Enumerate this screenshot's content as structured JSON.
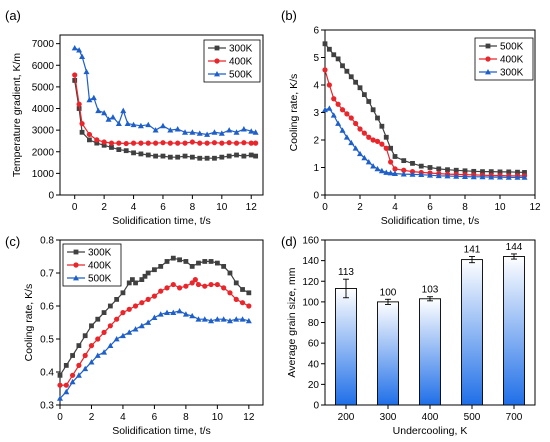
{
  "panels": [
    {
      "letter": "(a)"
    },
    {
      "letter": "(b)"
    },
    {
      "letter": "(c)"
    },
    {
      "letter": "(d)"
    }
  ],
  "chart_data": [
    {
      "panel": "(a)",
      "type": "line",
      "xlabel": "Solidification time, t/s",
      "ylabel": "Temperature gradient, K/m",
      "xlim": [
        -1,
        12.8
      ],
      "ylim": [
        0,
        7400
      ],
      "xticks": [
        0,
        2,
        4,
        6,
        8,
        10,
        12
      ],
      "yticks": [
        0,
        1000,
        2000,
        3000,
        4000,
        5000,
        6000,
        7000
      ],
      "legend_position": "top-right",
      "series": [
        {
          "name": "300K",
          "color": "#404040",
          "marker": "square",
          "x": [
            0,
            0.3,
            0.5,
            1.0,
            1.5,
            2.0,
            2.5,
            3.0,
            3.5,
            4.0,
            4.5,
            5.0,
            5.5,
            6.0,
            6.5,
            7.0,
            7.5,
            8.0,
            8.5,
            9.0,
            9.5,
            10.0,
            10.5,
            11.0,
            11.5,
            12.0,
            12.3
          ],
          "y": [
            5300,
            4000,
            2900,
            2550,
            2400,
            2300,
            2200,
            2100,
            2050,
            1950,
            1900,
            1850,
            1800,
            1800,
            1750,
            1750,
            1800,
            1750,
            1700,
            1700,
            1700,
            1750,
            1800,
            1850,
            1800,
            1850,
            1800
          ]
        },
        {
          "name": "400K",
          "color": "#e8262b",
          "marker": "circle",
          "x": [
            0,
            0.3,
            0.5,
            1.0,
            1.5,
            2.0,
            2.5,
            3.0,
            3.5,
            4.0,
            4.5,
            5.0,
            5.5,
            6.0,
            6.5,
            7.0,
            7.5,
            8.0,
            8.5,
            9.0,
            9.5,
            10.0,
            10.5,
            11.0,
            11.5,
            12.0,
            12.3
          ],
          "y": [
            5550,
            4200,
            3300,
            2800,
            2550,
            2450,
            2400,
            2400,
            2380,
            2400,
            2400,
            2400,
            2400,
            2420,
            2400,
            2400,
            2400,
            2450,
            2400,
            2400,
            2420,
            2400,
            2420,
            2400,
            2420,
            2400,
            2400
          ]
        },
        {
          "name": "500K",
          "color": "#1f5fc8",
          "marker": "triangle",
          "x": [
            0,
            0.3,
            0.5,
            0.8,
            1.0,
            1.3,
            1.6,
            2.0,
            2.3,
            2.6,
            3.0,
            3.3,
            3.6,
            4.0,
            4.5,
            5.0,
            5.5,
            6.0,
            6.5,
            7.0,
            7.5,
            8.0,
            8.5,
            9.0,
            9.5,
            10.0,
            10.5,
            11.0,
            11.5,
            12.0,
            12.3
          ],
          "y": [
            6800,
            6700,
            6400,
            5700,
            4400,
            4500,
            3900,
            3800,
            3500,
            3600,
            3300,
            3900,
            3300,
            3250,
            3200,
            3250,
            3000,
            3200,
            3000,
            3050,
            2900,
            2900,
            2850,
            2800,
            2900,
            2850,
            3000,
            2900,
            3050,
            2950,
            2900
          ]
        }
      ]
    },
    {
      "panel": "(b)",
      "type": "line",
      "xlabel": "Solidification time, t/s",
      "ylabel": "Cooling rate, K/s",
      "xlim": [
        0,
        12
      ],
      "ylim": [
        0,
        6
      ],
      "xticks": [
        0,
        2,
        4,
        6,
        8,
        10,
        12
      ],
      "yticks": [
        0,
        1,
        2,
        3,
        4,
        5,
        6
      ],
      "legend_position": "top-right",
      "series": [
        {
          "name": "500K",
          "color": "#404040",
          "marker": "square",
          "x": [
            0,
            0.25,
            0.5,
            0.75,
            1.0,
            1.25,
            1.5,
            1.75,
            2.0,
            2.25,
            2.5,
            2.75,
            3.0,
            3.25,
            3.5,
            3.75,
            4.0,
            4.5,
            5.0,
            5.5,
            6.0,
            6.5,
            7.0,
            7.5,
            8.0,
            8.5,
            9.0,
            9.5,
            10.0,
            10.5,
            11.0,
            11.4
          ],
          "y": [
            5.5,
            5.3,
            5.1,
            4.95,
            4.7,
            4.5,
            4.3,
            4.1,
            3.9,
            3.65,
            3.4,
            3.1,
            2.8,
            2.5,
            2.1,
            1.7,
            1.4,
            1.25,
            1.15,
            1.05,
            1.0,
            0.95,
            0.92,
            0.9,
            0.88,
            0.86,
            0.85,
            0.85,
            0.84,
            0.84,
            0.83,
            0.82
          ]
        },
        {
          "name": "400K",
          "color": "#e8262b",
          "marker": "circle",
          "x": [
            0,
            0.25,
            0.5,
            0.75,
            1.0,
            1.25,
            1.5,
            1.75,
            2.0,
            2.25,
            2.5,
            2.75,
            3.0,
            3.25,
            3.5,
            3.75,
            4.0,
            4.5,
            5.0,
            5.5,
            6.0,
            6.5,
            7.0,
            7.5,
            8.0,
            8.5,
            9.0,
            9.5,
            10.0,
            10.5,
            11.0,
            11.4
          ],
          "y": [
            4.55,
            4.0,
            3.5,
            3.3,
            3.1,
            2.95,
            2.8,
            2.6,
            2.4,
            2.25,
            2.1,
            2.0,
            1.95,
            1.85,
            1.7,
            1.2,
            0.95,
            0.9,
            0.85,
            0.82,
            0.8,
            0.78,
            0.76,
            0.75,
            0.74,
            0.73,
            0.72,
            0.71,
            0.71,
            0.7,
            0.7,
            0.7
          ]
        },
        {
          "name": "300K",
          "color": "#1f5fc8",
          "marker": "triangle",
          "x": [
            0,
            0.25,
            0.5,
            0.75,
            1.0,
            1.25,
            1.5,
            1.75,
            2.0,
            2.25,
            2.5,
            2.75,
            3.0,
            3.25,
            3.5,
            3.75,
            4.0,
            4.5,
            5.0,
            5.5,
            6.0,
            6.5,
            7.0,
            7.5,
            8.0,
            8.5,
            9.0,
            9.5,
            10.0,
            10.5,
            11.0,
            11.4
          ],
          "y": [
            3.1,
            3.15,
            2.9,
            2.6,
            2.35,
            2.1,
            1.9,
            1.7,
            1.5,
            1.35,
            1.2,
            1.05,
            0.95,
            0.88,
            0.82,
            0.8,
            0.78,
            0.76,
            0.75,
            0.74,
            0.72,
            0.7,
            0.69,
            0.68,
            0.67,
            0.66,
            0.66,
            0.65,
            0.65,
            0.64,
            0.64,
            0.64
          ]
        }
      ]
    },
    {
      "panel": "(c)",
      "type": "line",
      "xlabel": "Solidification time, t/s",
      "ylabel": "Cooling rate, K/s",
      "xlim": [
        0,
        12.9
      ],
      "ylim": [
        0.3,
        0.8
      ],
      "xticks": [
        0,
        2,
        4,
        6,
        8,
        10,
        12
      ],
      "yticks": [
        0.3,
        0.4,
        0.5,
        0.6,
        0.7,
        0.8
      ],
      "legend_position": "top-left",
      "series": [
        {
          "name": "300K",
          "color": "#404040",
          "marker": "square",
          "x": [
            0,
            0.4,
            0.8,
            1.2,
            1.6,
            2.0,
            2.4,
            2.8,
            3.2,
            3.6,
            4.0,
            4.4,
            4.6,
            4.8,
            5.2,
            5.4,
            5.6,
            6.0,
            6.4,
            6.8,
            7.2,
            7.6,
            8.0,
            8.4,
            8.8,
            9.2,
            9.6,
            10.0,
            10.4,
            10.8,
            11.2,
            11.6,
            12.0
          ],
          "y": [
            0.39,
            0.42,
            0.45,
            0.48,
            0.51,
            0.54,
            0.56,
            0.58,
            0.6,
            0.62,
            0.64,
            0.67,
            0.68,
            0.67,
            0.68,
            0.69,
            0.7,
            0.71,
            0.72,
            0.735,
            0.745,
            0.74,
            0.735,
            0.72,
            0.73,
            0.735,
            0.735,
            0.73,
            0.72,
            0.7,
            0.67,
            0.65,
            0.64
          ]
        },
        {
          "name": "400K",
          "color": "#e8262b",
          "marker": "circle",
          "x": [
            0,
            0.4,
            0.8,
            1.2,
            1.6,
            2.0,
            2.4,
            2.8,
            3.2,
            3.6,
            4.0,
            4.4,
            4.8,
            5.2,
            5.6,
            6.0,
            6.4,
            6.8,
            7.2,
            7.6,
            8.0,
            8.4,
            8.6,
            8.8,
            9.2,
            9.6,
            10.0,
            10.4,
            10.8,
            11.2,
            11.6,
            12.0
          ],
          "y": [
            0.36,
            0.36,
            0.39,
            0.42,
            0.45,
            0.48,
            0.5,
            0.52,
            0.54,
            0.56,
            0.58,
            0.59,
            0.6,
            0.61,
            0.62,
            0.63,
            0.645,
            0.655,
            0.665,
            0.655,
            0.66,
            0.67,
            0.68,
            0.665,
            0.66,
            0.665,
            0.665,
            0.655,
            0.64,
            0.62,
            0.61,
            0.6
          ]
        },
        {
          "name": "500K",
          "color": "#1f5fc8",
          "marker": "triangle",
          "x": [
            0,
            0.4,
            0.8,
            1.2,
            1.6,
            2.0,
            2.4,
            2.8,
            3.2,
            3.6,
            4.0,
            4.4,
            4.8,
            5.2,
            5.6,
            6.0,
            6.4,
            6.8,
            7.2,
            7.6,
            8.0,
            8.4,
            8.8,
            9.2,
            9.6,
            10.0,
            10.4,
            10.8,
            11.2,
            11.6,
            12.0
          ],
          "y": [
            0.32,
            0.34,
            0.37,
            0.39,
            0.41,
            0.43,
            0.45,
            0.46,
            0.48,
            0.5,
            0.51,
            0.52,
            0.53,
            0.54,
            0.55,
            0.565,
            0.575,
            0.58,
            0.58,
            0.585,
            0.575,
            0.57,
            0.56,
            0.56,
            0.555,
            0.56,
            0.56,
            0.555,
            0.56,
            0.56,
            0.555
          ]
        }
      ]
    },
    {
      "panel": "(d)",
      "type": "bar",
      "xlabel": "Undercooling, K",
      "ylabel": "Average grain size, mm",
      "ylim": [
        0,
        160
      ],
      "yticks": [
        0,
        20,
        40,
        60,
        80,
        100,
        120,
        140,
        160
      ],
      "categories": [
        "200",
        "300",
        "400",
        "500",
        "700"
      ],
      "values": [
        113,
        100,
        103,
        141,
        144
      ],
      "errors": [
        9,
        2.5,
        2,
        3,
        2.5
      ],
      "data_labels": [
        "113",
        "100",
        "103",
        "141",
        "144"
      ],
      "bar_color_bottom": "#1f6fe8",
      "bar_color_top": "#ffffff"
    }
  ]
}
